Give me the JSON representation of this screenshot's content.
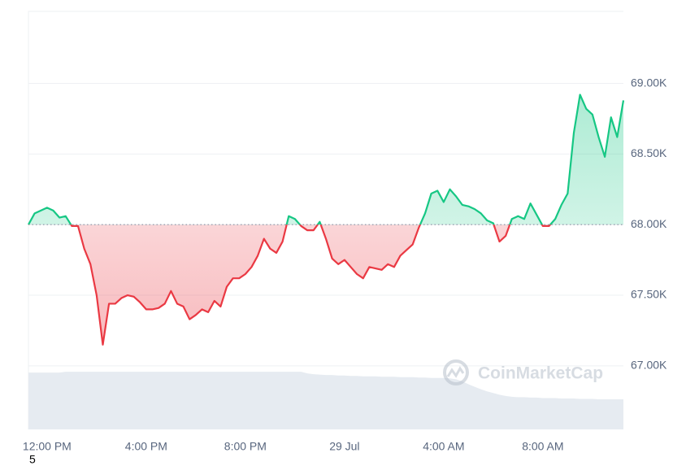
{
  "chart_data": {
    "type": "line",
    "watermark": "CoinMarketCap",
    "footnote": "5",
    "categories": [
      null,
      null,
      null,
      "12:00 PM",
      null,
      null,
      null,
      null,
      null,
      null,
      null,
      null,
      null,
      null,
      null,
      null,
      null,
      null,
      null,
      "4:00 PM",
      null,
      null,
      null,
      null,
      null,
      null,
      null,
      null,
      null,
      null,
      null,
      null,
      null,
      null,
      null,
      "8:00 PM",
      null,
      null,
      null,
      null,
      null,
      null,
      null,
      null,
      null,
      null,
      null,
      null,
      null,
      null,
      null,
      "29 Jul",
      null,
      null,
      null,
      null,
      null,
      null,
      null,
      null,
      null,
      null,
      null,
      null,
      null,
      null,
      null,
      "4:00 AM",
      null,
      null,
      null,
      null,
      null,
      null,
      null,
      null,
      null,
      null,
      null,
      null,
      null,
      null,
      null,
      "8:00 AM",
      null,
      null,
      null,
      null,
      null,
      null,
      null,
      null,
      null,
      null,
      null,
      null,
      null
    ],
    "baseline": 68000,
    "series": [
      {
        "type": "line",
        "color": "#16c784",
        "negative_color": "#ea3943",
        "values": [
          68000,
          68080,
          68100,
          68120,
          68100,
          68050,
          68060,
          67990,
          67990,
          67830,
          67720,
          67500,
          67150,
          67440,
          67440,
          67480,
          67500,
          67490,
          67450,
          67400,
          67400,
          67410,
          67440,
          67530,
          67440,
          67420,
          67330,
          67360,
          67400,
          67380,
          67460,
          67420,
          67560,
          67620,
          67620,
          67650,
          67700,
          67780,
          67900,
          67830,
          67800,
          67880,
          68060,
          68040,
          67990,
          67960,
          67960,
          68020,
          67900,
          67760,
          67720,
          67750,
          67700,
          67650,
          67620,
          67700,
          67690,
          67680,
          67720,
          67700,
          67780,
          67820,
          67860,
          67980,
          68080,
          68220,
          68240,
          68160,
          68250,
          68200,
          68140,
          68130,
          68110,
          68080,
          68030,
          68010,
          67880,
          67920,
          68040,
          68060,
          68040,
          68150,
          68070,
          67990,
          67990,
          68040,
          68140,
          68220,
          68650,
          68920,
          68820,
          68780,
          68620,
          68480,
          68760,
          68620,
          68880
        ]
      },
      {
        "type": "area",
        "axis": "y2",
        "color": "#e6ebf1",
        "values": [
          13.6,
          13.6,
          13.6,
          13.6,
          13.6,
          13.6,
          13.8,
          13.8,
          13.8,
          13.8,
          13.8,
          13.8,
          13.8,
          13.8,
          13.8,
          13.8,
          13.8,
          13.8,
          13.8,
          13.8,
          13.8,
          13.8,
          13.8,
          13.8,
          13.8,
          13.8,
          13.8,
          13.8,
          13.8,
          13.8,
          13.8,
          13.8,
          13.8,
          13.8,
          13.8,
          13.8,
          13.8,
          13.8,
          13.8,
          13.8,
          13.8,
          13.8,
          13.8,
          13.8,
          13.8,
          13.4,
          13.2,
          13.1,
          13.0,
          13.0,
          12.9,
          12.9,
          12.8,
          12.8,
          12.7,
          12.7,
          12.7,
          12.6,
          12.6,
          12.6,
          12.5,
          12.5,
          12.5,
          12.4,
          12.4,
          12.3,
          12.3,
          12.3,
          12.2,
          12.0,
          11.5,
          10.8,
          10.2,
          9.6,
          9.1,
          8.7,
          8.3,
          8.0,
          7.8,
          7.7,
          7.7,
          7.6,
          7.6,
          7.5,
          7.5,
          7.5,
          7.4,
          7.4,
          7.4,
          7.3,
          7.3,
          7.3,
          7.2,
          7.2,
          7.2,
          7.2,
          7.2
        ]
      }
    ],
    "ylim": [
      66550,
      69510
    ],
    "yticks": [
      {
        "value": 67000,
        "label": "67.00K"
      },
      {
        "value": 67500,
        "label": "67.50K"
      },
      {
        "value": 68000,
        "label": "68.00K"
      },
      {
        "value": 68500,
        "label": "68.50K"
      },
      {
        "value": 69000,
        "label": "69.00K"
      }
    ],
    "y2lim": [
      0,
      100
    ],
    "grid": true
  }
}
